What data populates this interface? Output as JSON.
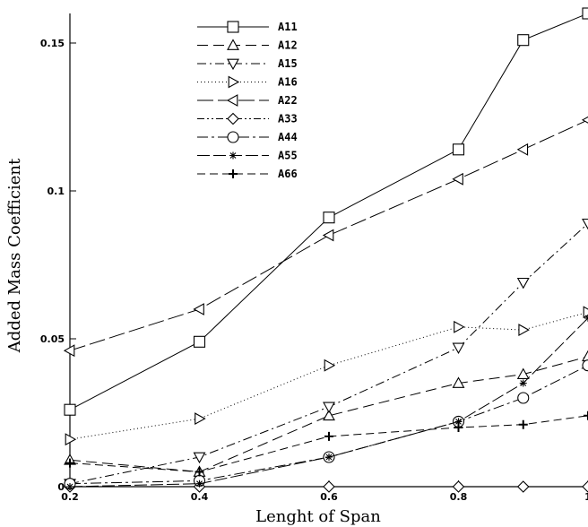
{
  "chart_data": {
    "type": "line",
    "xlabel": "Lenght of Span",
    "ylabel": "Added Mass Coefficient",
    "xlim": [
      0.2,
      1.0
    ],
    "ylim": [
      0,
      0.16
    ],
    "grid": false,
    "legend_position": "top-center",
    "x_ticks": [
      "0.2",
      "0.4",
      "0.6",
      "0.8",
      "1"
    ],
    "y_ticks": [
      "0",
      "0.05",
      "0.1",
      "0.15"
    ],
    "series": [
      {
        "name": "A11",
        "marker": "square",
        "dash": "",
        "x": [
          0.2,
          0.4,
          0.6,
          0.8,
          0.9,
          1.0
        ],
        "values": [
          0.026,
          0.049,
          0.091,
          0.114,
          0.151,
          0.16
        ]
      },
      {
        "name": "A12",
        "marker": "triangle-up",
        "dash": "12,6",
        "x": [
          0.2,
          0.4,
          0.6,
          0.8,
          0.9,
          1.0
        ],
        "values": [
          0.009,
          0.005,
          0.024,
          0.035,
          0.038,
          0.044
        ]
      },
      {
        "name": "A15",
        "marker": "triangle-down",
        "dash": "10,4,2,4",
        "x": [
          0.2,
          0.4,
          0.6,
          0.8,
          0.9,
          1.0
        ],
        "values": [
          0.001,
          0.01,
          0.027,
          0.047,
          0.069,
          0.089
        ]
      },
      {
        "name": "A16",
        "marker": "triangle-right",
        "dash": "1,3",
        "x": [
          0.2,
          0.4,
          0.6,
          0.8,
          0.9,
          1.0
        ],
        "values": [
          0.016,
          0.023,
          0.041,
          0.054,
          0.053,
          0.059
        ]
      },
      {
        "name": "A22",
        "marker": "triangle-left",
        "dash": "18,5",
        "x": [
          0.2,
          0.4,
          0.6,
          0.8,
          0.9,
          1.0
        ],
        "values": [
          0.046,
          0.06,
          0.085,
          0.104,
          0.114,
          0.124
        ]
      },
      {
        "name": "A33",
        "marker": "diamond",
        "dash": "8,3,2,3,2,3",
        "x": [
          0.2,
          0.4,
          0.6,
          0.8,
          0.9,
          1.0
        ],
        "values": [
          0.0,
          0.0,
          0.0,
          0.0,
          0.0,
          0.0
        ]
      },
      {
        "name": "A44",
        "marker": "circle",
        "dash": "12,4,3,4",
        "x": [
          0.2,
          0.4,
          0.6,
          0.8,
          0.9,
          1.0
        ],
        "values": [
          0.001,
          0.002,
          0.01,
          0.022,
          0.03,
          0.041
        ]
      },
      {
        "name": "A55",
        "marker": "asterisk",
        "dash": "14,4,14,4",
        "x": [
          0.2,
          0.4,
          0.6,
          0.8,
          0.9,
          1.0
        ],
        "values": [
          0.0,
          0.001,
          0.01,
          0.022,
          0.035,
          0.057
        ]
      },
      {
        "name": "A66",
        "marker": "plus",
        "dash": "9,5",
        "x": [
          0.2,
          0.4,
          0.6,
          0.8,
          0.9,
          1.0
        ],
        "values": [
          0.008,
          0.005,
          0.017,
          0.02,
          0.021,
          0.024
        ]
      }
    ]
  }
}
